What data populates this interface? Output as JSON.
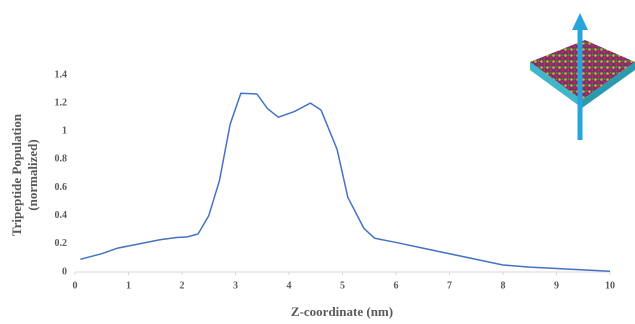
{
  "chart_data": {
    "type": "line",
    "xlabel": "Z-coordinate (nm)",
    "ylabel": [
      "Tripeptide Population",
      "(normalized)"
    ],
    "x": [
      0.1,
      0.5,
      0.8,
      1.2,
      1.6,
      1.9,
      2.1,
      2.3,
      2.5,
      2.7,
      2.9,
      3.1,
      3.4,
      3.6,
      3.8,
      4.1,
      4.4,
      4.6,
      4.9,
      5.1,
      5.4,
      5.6,
      6,
      6.5,
      7,
      7.5,
      8,
      8.5,
      9,
      9.5,
      10
    ],
    "series": [
      {
        "color": "#4472c4",
        "values": [
          0.09,
          0.13,
          0.17,
          0.2,
          0.23,
          0.245,
          0.25,
          0.27,
          0.4,
          0.65,
          1.05,
          1.27,
          1.265,
          1.16,
          1.1,
          1.14,
          1.2,
          1.15,
          0.87,
          0.53,
          0.31,
          0.24,
          0.21,
          0.17,
          0.13,
          0.09,
          0.05,
          0.035,
          0.025,
          0.015,
          0.005
        ]
      }
    ],
    "xlim": [
      0,
      10
    ],
    "xticks": [
      0,
      1,
      2,
      3,
      4,
      5,
      6,
      7,
      8,
      9,
      10
    ],
    "ylim": [
      0,
      1.4
    ],
    "yticks": [
      0,
      0.2,
      0.4,
      0.6,
      0.8,
      1,
      1.2,
      1.4
    ],
    "grid": false
  }
}
